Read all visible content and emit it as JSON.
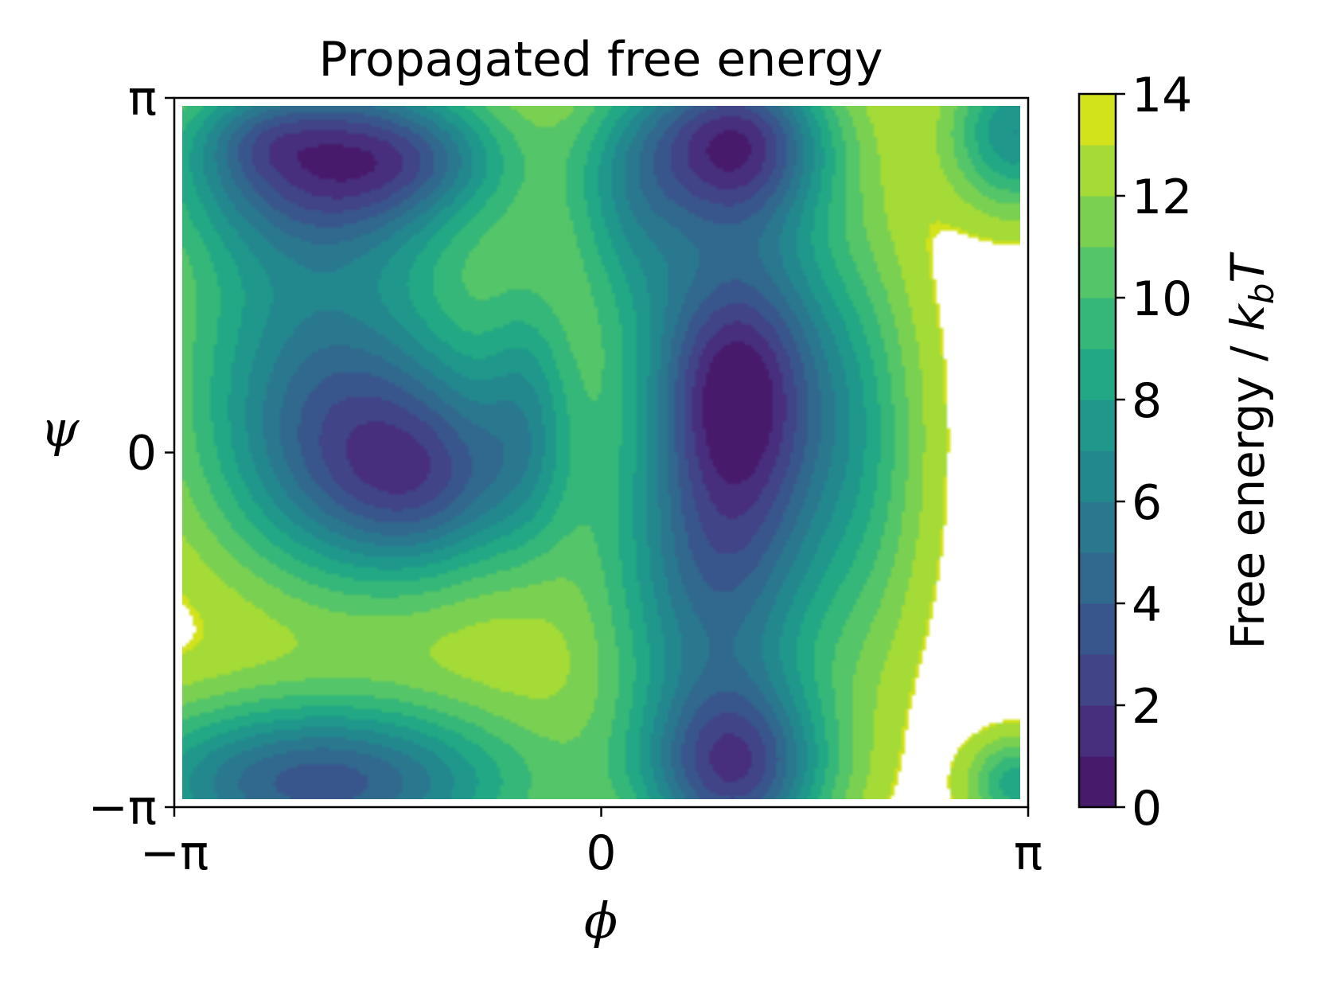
{
  "chart_data": {
    "type": "contour",
    "title": "Propagated free energy",
    "xlabel": "ϕ",
    "ylabel": "ψ",
    "xlim": [
      -3.14159,
      3.14159
    ],
    "ylim": [
      -3.14159,
      3.14159
    ],
    "x_ticks": [
      {
        "value": -3.14159,
        "label": "−π"
      },
      {
        "value": 0,
        "label": "0"
      },
      {
        "value": 3.14159,
        "label": "π"
      }
    ],
    "y_ticks": [
      {
        "value": -3.14159,
        "label": "−π"
      },
      {
        "value": 0,
        "label": "0"
      },
      {
        "value": 3.14159,
        "label": "π"
      }
    ],
    "colorbar": {
      "label": "Free energy / k_bT",
      "label_main": "Free energy / ",
      "label_k": "k",
      "label_sub": "b",
      "label_T": "T",
      "range": [
        0,
        14
      ],
      "levels": [
        0,
        1,
        2,
        3,
        4,
        5,
        6,
        7,
        8,
        9,
        10,
        11,
        12,
        13,
        14
      ],
      "ticks": [
        {
          "value": 0,
          "label": "0"
        },
        {
          "value": 2,
          "label": "2"
        },
        {
          "value": 4,
          "label": "4"
        },
        {
          "value": 6,
          "label": "6"
        },
        {
          "value": 8,
          "label": "8"
        },
        {
          "value": 10,
          "label": "10"
        },
        {
          "value": 12,
          "label": "12"
        },
        {
          "value": 14,
          "label": "14"
        }
      ],
      "colormap": "viridis",
      "colors": [
        "#481a6c",
        "#472f7d",
        "#414487",
        "#39568c",
        "#31688e",
        "#2a788e",
        "#23888e",
        "#1f988b",
        "#22a884",
        "#35b779",
        "#54c568",
        "#7ad151",
        "#a5db36",
        "#d2e21b"
      ]
    },
    "basins": [
      {
        "phi": -2.55,
        "psi": 2.78,
        "min_energy": 0.4
      },
      {
        "phi": -1.4,
        "psi": 2.7,
        "min_energy": 0.4
      },
      {
        "phi": -1.3,
        "psi": -0.18,
        "min_energy": 1.6
      },
      {
        "phi": 1.05,
        "psi": 0.6,
        "min_energy": 0.3
      },
      {
        "phi": 1.0,
        "psi": 2.9,
        "min_energy": 2.0
      },
      {
        "phi": 0.98,
        "psi": -3.0,
        "min_energy": 2.2
      },
      {
        "phi": -2.1,
        "psi": -3.1,
        "min_energy": 2.4
      },
      {
        "phi": 3.1,
        "psi": 2.8,
        "min_energy": 6.0
      }
    ],
    "note_unsampled_regions_blank": true
  }
}
